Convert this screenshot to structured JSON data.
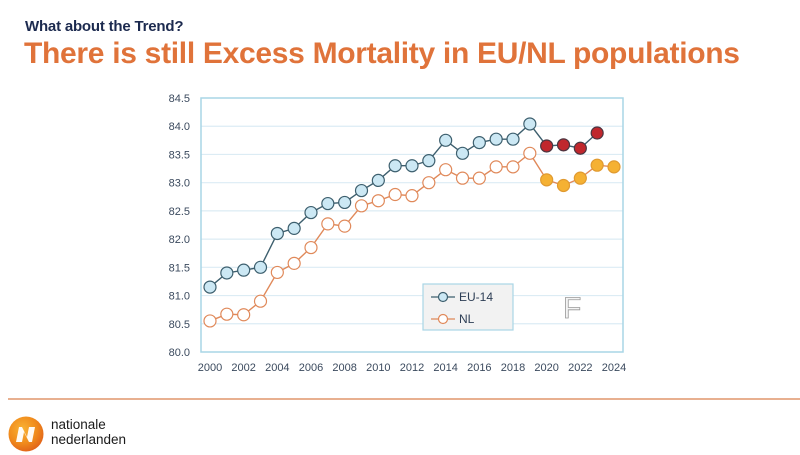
{
  "header": {
    "subtitle": "What about the Trend?",
    "title": "There is still Excess Mortality in EU/NL populations"
  },
  "watermark_letter": "F",
  "footer": {
    "brand_line1": "nationale",
    "brand_line2": "nederlanden"
  },
  "colors": {
    "title": "#e0733a",
    "subtitle": "#1c2a4f",
    "eu_line": "#3d5f6e",
    "eu_marker": "#cce8f4",
    "eu_highlight_marker": "#c0272d",
    "nl_line": "#e0895a",
    "nl_marker": "#ffffff",
    "nl_highlight_marker": "#f5b133",
    "frame": "#a9d6e6",
    "grid": "#dcecf4"
  },
  "chart_data": {
    "type": "line",
    "title": "",
    "xlabel": "",
    "ylabel": "",
    "x": [
      2000,
      2001,
      2002,
      2003,
      2004,
      2005,
      2006,
      2007,
      2008,
      2009,
      2010,
      2011,
      2012,
      2013,
      2014,
      2015,
      2016,
      2017,
      2018,
      2019,
      2020,
      2021,
      2022,
      2023,
      2024
    ],
    "xlim": [
      2000,
      2024
    ],
    "xticks": [
      "2000",
      "2002",
      "2004",
      "2006",
      "2008",
      "2010",
      "2012",
      "2014",
      "2016",
      "2018",
      "2020",
      "2022",
      "2024"
    ],
    "ylim": [
      80.0,
      84.5
    ],
    "yticks": [
      "80.0",
      "80.5",
      "81.0",
      "81.5",
      "82.0",
      "82.5",
      "83.0",
      "83.5",
      "84.0",
      "84.5"
    ],
    "grid": true,
    "legend_position": "lower-center-right",
    "highlight_from_year": 2020,
    "series": [
      {
        "name": "EU-14",
        "values": [
          81.15,
          81.4,
          81.45,
          81.5,
          82.1,
          82.19,
          82.47,
          82.63,
          82.65,
          82.86,
          83.04,
          83.3,
          83.3,
          83.39,
          83.75,
          83.52,
          83.71,
          83.77,
          83.77,
          84.04,
          83.65,
          83.67,
          83.61,
          83.88,
          null
        ]
      },
      {
        "name": "NL",
        "values": [
          80.55,
          80.67,
          80.66,
          80.9,
          81.41,
          81.57,
          81.85,
          82.27,
          82.23,
          82.59,
          82.68,
          82.79,
          82.77,
          83.0,
          83.23,
          83.08,
          83.08,
          83.28,
          83.28,
          83.52,
          83.05,
          82.95,
          83.08,
          83.31,
          83.28
        ]
      }
    ]
  }
}
